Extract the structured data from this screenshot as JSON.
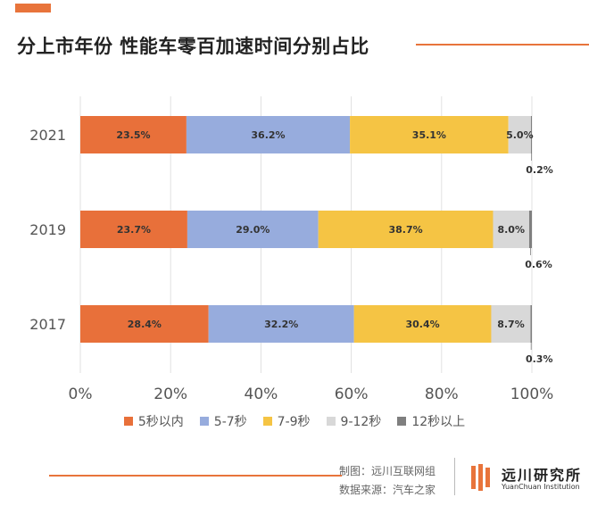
{
  "title": "分上市年份 性能车零百加速时间分别占比",
  "colors": {
    "accent": "#E8743B",
    "s1": "#E8703A",
    "s2": "#97ACDD",
    "s3": "#F5C444",
    "s4": "#D8D8D8",
    "s5": "#7F7F7F",
    "grid": "#E0E0E0",
    "rule": "#E8743B"
  },
  "chart_data": {
    "type": "bar",
    "orientation": "horizontal",
    "stacked": true,
    "categories": [
      "2021",
      "2019",
      "2017"
    ],
    "series": [
      {
        "name": "5秒以内",
        "values": [
          23.5,
          23.7,
          28.4
        ],
        "labels": [
          "23.5%",
          "23.7%",
          "28.4%"
        ]
      },
      {
        "name": "5-7秒",
        "values": [
          36.2,
          29.0,
          32.2
        ],
        "labels": [
          "36.2%",
          "29.0%",
          "32.2%"
        ]
      },
      {
        "name": "7-9秒",
        "values": [
          35.1,
          38.7,
          30.4
        ],
        "labels": [
          "35.1%",
          "38.7%",
          "30.4%"
        ]
      },
      {
        "name": "9-12秒",
        "values": [
          5.0,
          8.0,
          8.7
        ],
        "labels": [
          "5.0%",
          "8.0%",
          "8.7%"
        ]
      },
      {
        "name": "12秒以上",
        "values": [
          0.2,
          0.6,
          0.3
        ],
        "labels": [
          "0.2%",
          "0.6%",
          "0.3%"
        ]
      }
    ],
    "xlim": [
      0,
      100
    ],
    "xticks": [
      "0%",
      "20%",
      "40%",
      "60%",
      "80%",
      "100%"
    ],
    "xlabel": "",
    "ylabel": "",
    "grid": true,
    "legend": "bottom"
  },
  "footer": {
    "credit_maker": "制图：远川互联网组",
    "credit_source": "数据来源：汽车之家",
    "logo_cn": "远川研究所",
    "logo_en": "YuanChuan Institution"
  }
}
